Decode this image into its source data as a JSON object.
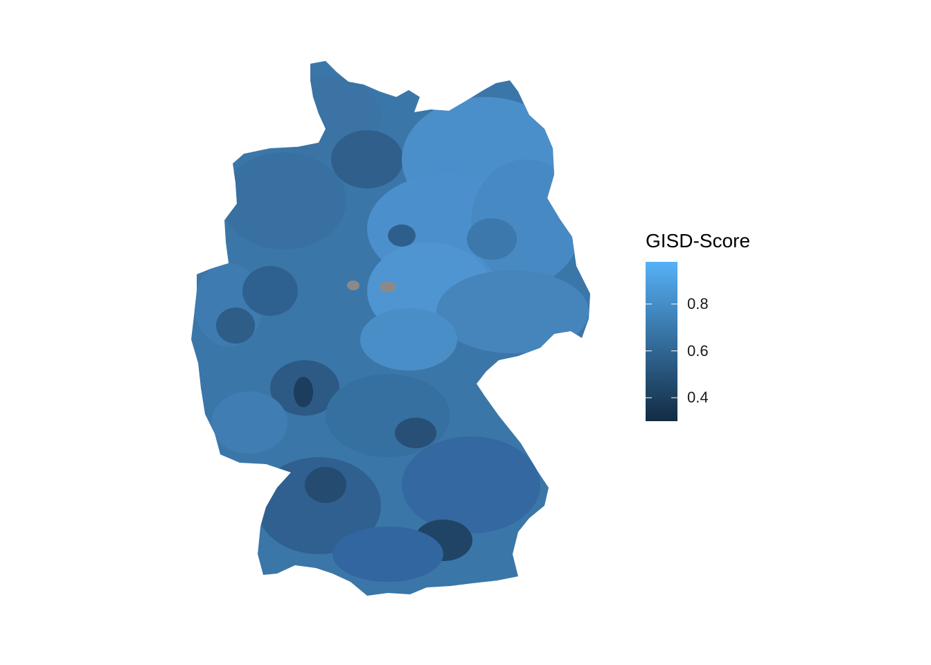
{
  "map": {
    "region": "Germany",
    "fill_variable": "GISD-Score",
    "missing_value_color": "#8a8a8a"
  },
  "legend": {
    "title": "GISD-Score",
    "low_color": "#132b43",
    "high_color": "#56b1f7",
    "range": [
      0.3,
      0.98
    ],
    "ticks": [
      {
        "value": 0.8,
        "label": "0.8"
      },
      {
        "value": 0.6,
        "label": "0.6"
      },
      {
        "value": 0.4,
        "label": "0.4"
      }
    ]
  },
  "colors": {
    "background": "#ffffff",
    "legend_tick": "#ffffff"
  }
}
